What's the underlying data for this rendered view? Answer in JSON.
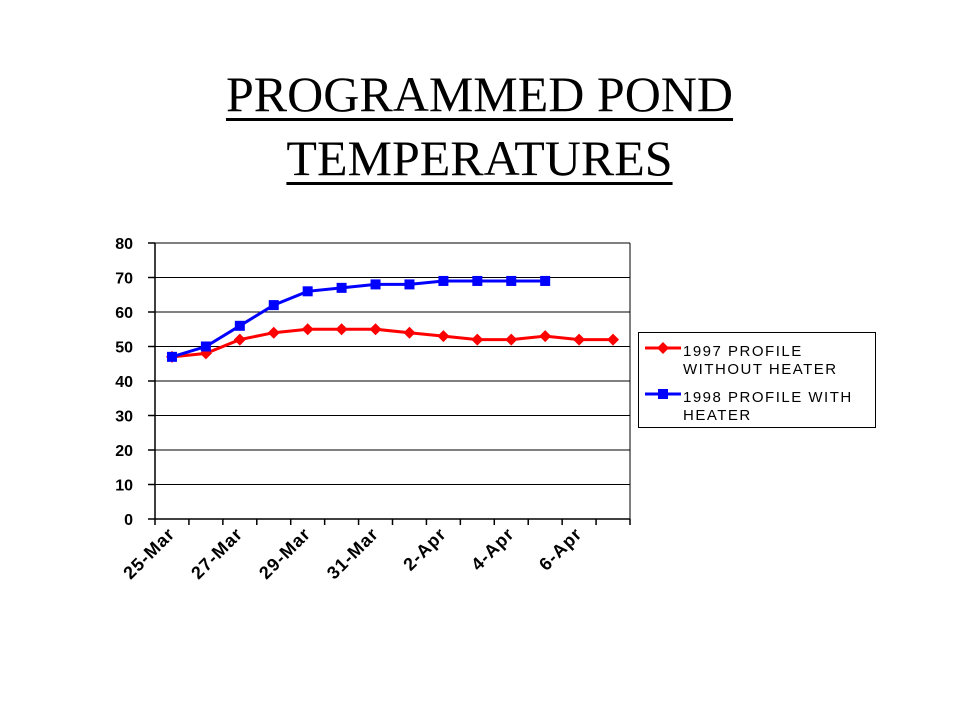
{
  "title_lines": [
    "PROGRAMMED POND",
    "TEMPERATURES"
  ],
  "chart_data": {
    "type": "line",
    "title": "PROGRAMMED POND TEMPERATURES",
    "xlabel": "",
    "ylabel": "",
    "ylim": [
      0,
      80
    ],
    "y_ticks": [
      "0",
      "10",
      "20",
      "30",
      "40",
      "50",
      "60",
      "70",
      "80"
    ],
    "grid": "horizontal",
    "legend_position": "right",
    "x": [
      "25-Mar",
      "26-Mar",
      "27-Mar",
      "28-Mar",
      "29-Mar",
      "30-Mar",
      "31-Mar",
      "1-Apr",
      "2-Apr",
      "3-Apr",
      "4-Apr",
      "5-Apr",
      "6-Apr",
      "7-Apr"
    ],
    "x_tick_labels": [
      "25-Mar",
      "27-Mar",
      "29-Mar",
      "31-Mar",
      "2-Apr",
      "4-Apr",
      "6-Apr"
    ],
    "series": [
      {
        "name_lines": [
          "1997 PROFILE",
          "WITHOUT HEATER"
        ],
        "color": "#ff0000",
        "marker": "diamond",
        "values": [
          47,
          48,
          52,
          54,
          55,
          55,
          55,
          54,
          53,
          52,
          52,
          53,
          52,
          52
        ]
      },
      {
        "name_lines": [
          "1998  PROFILE WITH",
          "HEATER"
        ],
        "color": "#0000ff",
        "marker": "square",
        "values": [
          47,
          50,
          56,
          62,
          66,
          67,
          68,
          68,
          69,
          69,
          69,
          69,
          null,
          null
        ]
      }
    ]
  }
}
